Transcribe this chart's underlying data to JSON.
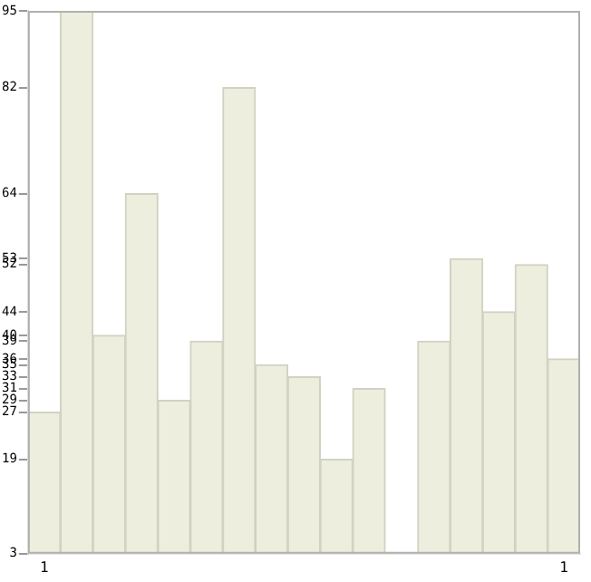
{
  "chart_data": {
    "type": "bar",
    "categories": [
      "1",
      null,
      null,
      null,
      null,
      null,
      null,
      null,
      null,
      null,
      null,
      null,
      null,
      null,
      null,
      null,
      "1"
    ],
    "values": [
      27,
      95,
      40,
      64,
      29,
      39,
      82,
      35,
      33,
      19,
      31,
      3,
      39,
      53,
      44,
      52,
      36
    ],
    "color": "#eeeedf",
    "ylim": [
      3,
      95
    ],
    "yticks": [
      3,
      19,
      27,
      29,
      31,
      33,
      35,
      36,
      39,
      40,
      44,
      52,
      53,
      64,
      82,
      95
    ],
    "grid": false,
    "legend": false
  }
}
